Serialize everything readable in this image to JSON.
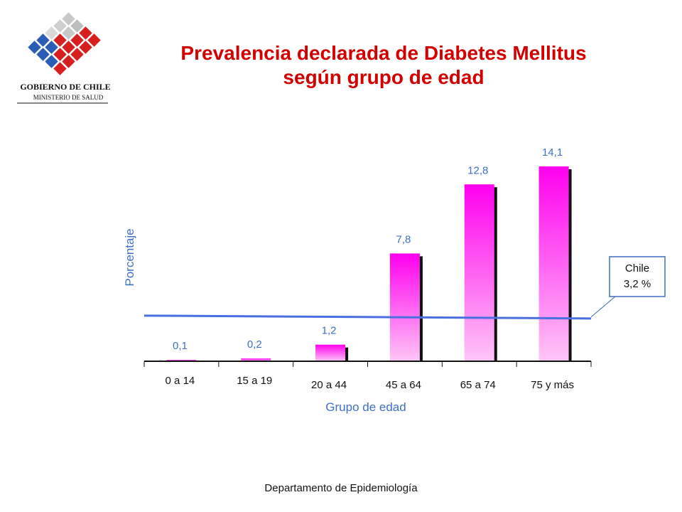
{
  "logo": {
    "line1": "GOBIERNO DE CHILE",
    "line2": "MINISTERIO DE SALUD"
  },
  "title": {
    "line1": "Prevalencia declarada de Diabetes Mellitus",
    "line2": "según grupo de edad"
  },
  "footer": "Departamento de Epidemiología",
  "colors": {
    "title": "#d20000",
    "bar_top": "#ff00ee",
    "bar_bottom": "#ffc6f7",
    "label": "#3f6fc6",
    "ref_line": "#4a6fe0",
    "shadow": "#111111"
  },
  "chart_data": {
    "type": "bar",
    "title": "Prevalencia declarada de Diabetes Mellitus según grupo de edad",
    "xlabel": "Grupo de edad",
    "ylabel": "Porcentaje",
    "categories": [
      "0 a 14",
      "15 a 19",
      "20 a 44",
      "45 a 64",
      "65 a 74",
      "75 y más"
    ],
    "values": [
      0.1,
      0.2,
      1.2,
      7.8,
      12.8,
      14.1
    ],
    "value_labels": [
      "0,1",
      "0,2",
      "1,2",
      "7,8",
      "12,8",
      "14,1"
    ],
    "ylim": [
      0,
      14.1
    ],
    "reference_line": {
      "value": 3.2,
      "label_line1": "Chile",
      "label_line2": "3,2 %"
    },
    "grid": false
  }
}
